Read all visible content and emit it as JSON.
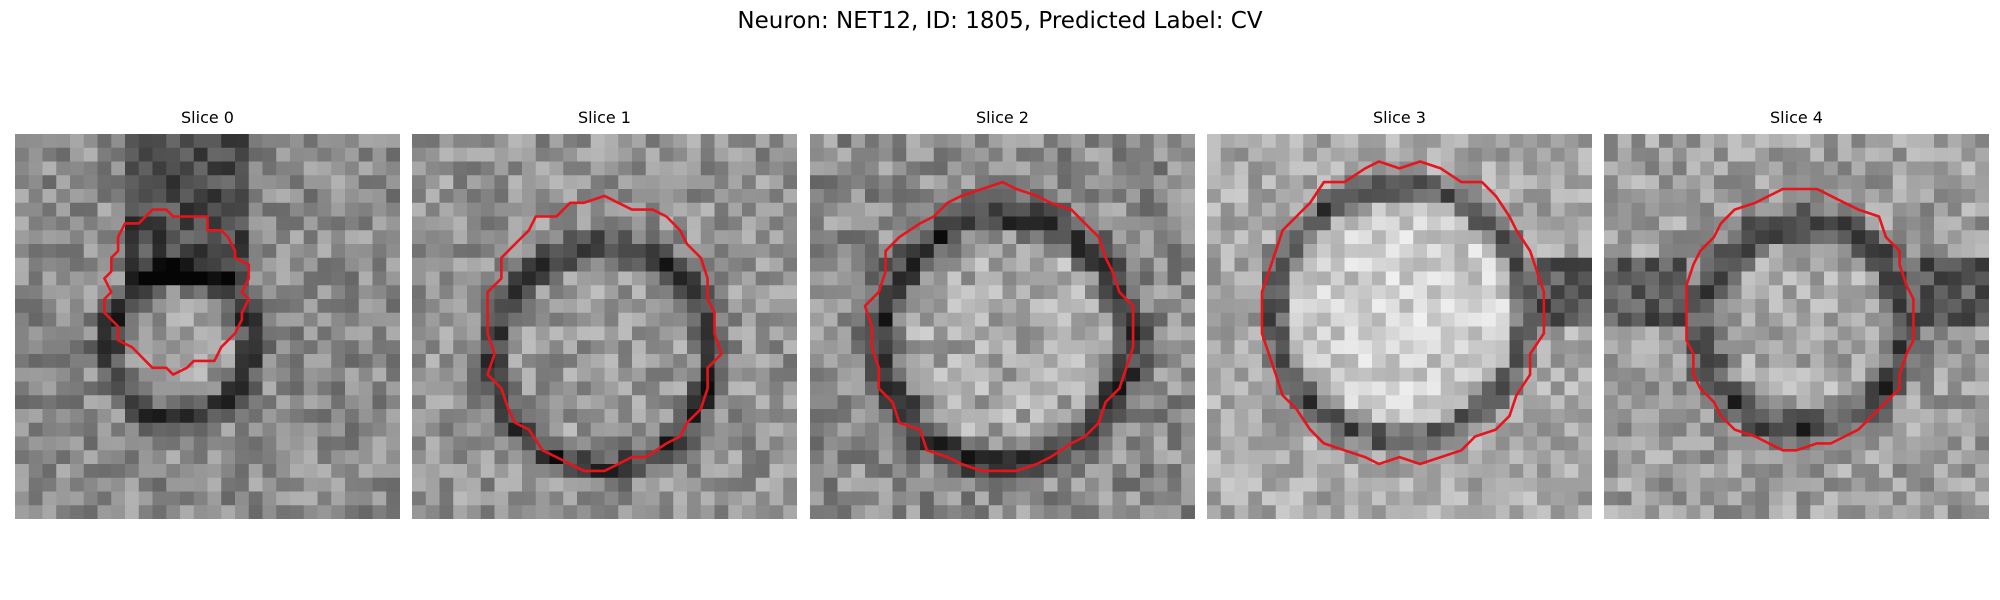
{
  "figure": {
    "title": "Neuron: NET12, ID: 1805, Predicted Label: CV"
  },
  "colors": {
    "contour": "#e8141c",
    "background": "#ffffff"
  },
  "panels": [
    {
      "title": "Slice 0"
    },
    {
      "title": "Slice 1"
    },
    {
      "title": "Slice 2"
    },
    {
      "title": "Slice 3"
    },
    {
      "title": "Slice 4"
    }
  ]
}
